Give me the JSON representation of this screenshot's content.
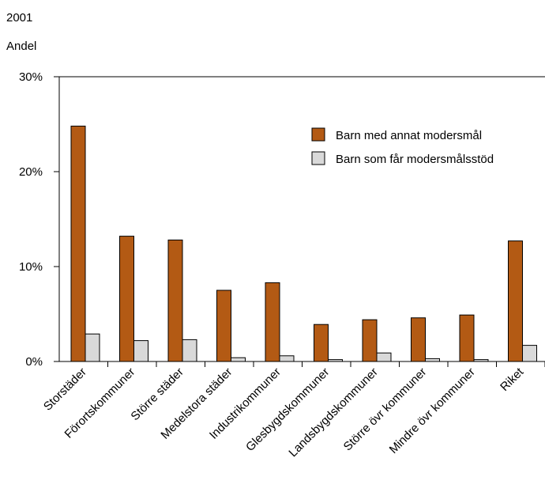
{
  "chart_data": {
    "type": "bar",
    "title": "2001",
    "ylabel": "Andel",
    "xlabel": "",
    "ylim": [
      0,
      30
    ],
    "yticks": [
      "0%",
      "10%",
      "20%",
      "30%"
    ],
    "grid": false,
    "legend_position": "top-right",
    "categories": [
      "Storstäder",
      "Förortskommuner",
      "Större städer",
      "Medelstora städer",
      "Industrikommuner",
      "Glesbygdskommuner",
      "Landsbygdskommuner",
      "Större övr kommuner",
      "Mindre övr kommuner",
      "Riket"
    ],
    "series": [
      {
        "name": "Barn med annat modersmål",
        "color": "#b35a14",
        "values": [
          24.8,
          13.2,
          12.8,
          7.5,
          8.3,
          3.9,
          4.4,
          4.6,
          4.9,
          12.7
        ]
      },
      {
        "name": "Barn som får modersmålsstöd",
        "color": "#d9d9d9",
        "values": [
          2.9,
          2.2,
          2.3,
          0.4,
          0.6,
          0.2,
          0.9,
          0.3,
          0.2,
          1.7
        ]
      }
    ]
  }
}
